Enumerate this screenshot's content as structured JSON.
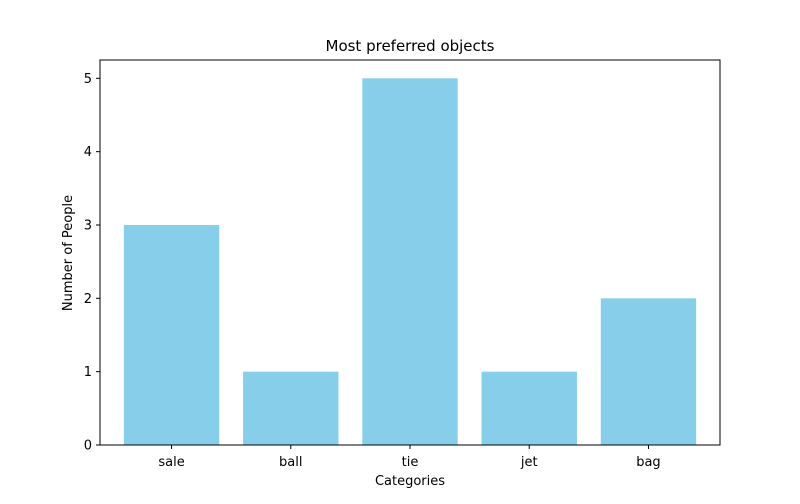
{
  "chart_data": {
    "type": "bar",
    "title": "Most preferred objects",
    "xlabel": "Categories",
    "ylabel": "Number of People",
    "categories": [
      "sale",
      "ball",
      "tie",
      "jet",
      "bag"
    ],
    "values": [
      3,
      1,
      5,
      1,
      2
    ],
    "ylim": [
      0,
      5.25
    ],
    "yticks": [
      0,
      1,
      2,
      3,
      4,
      5
    ],
    "bar_color": "#87ceeb",
    "grid": false,
    "legend": "none"
  }
}
